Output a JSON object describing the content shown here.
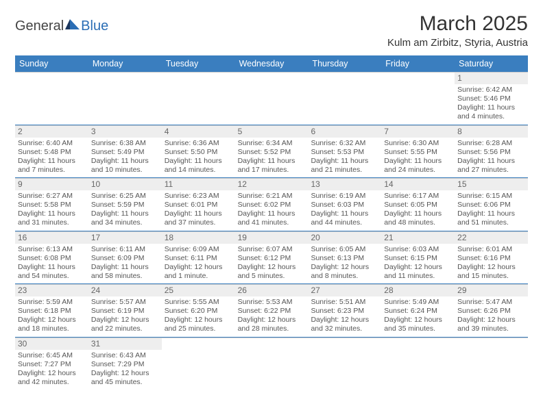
{
  "logo": {
    "text1": "General",
    "text2": "Blue"
  },
  "title": "March 2025",
  "location": "Kulm am Zirbitz, Styria, Austria",
  "colors": {
    "header_bg": "#3a7ebf",
    "header_fg": "#ffffff",
    "daynum_bg": "#eeeeee",
    "border": "#3a7ebf"
  },
  "weekdays": [
    "Sunday",
    "Monday",
    "Tuesday",
    "Wednesday",
    "Thursday",
    "Friday",
    "Saturday"
  ],
  "weeks": [
    [
      null,
      null,
      null,
      null,
      null,
      null,
      {
        "n": "1",
        "sr": "6:42 AM",
        "ss": "5:46 PM",
        "dl": "11 hours and 4 minutes."
      }
    ],
    [
      {
        "n": "2",
        "sr": "6:40 AM",
        "ss": "5:48 PM",
        "dl": "11 hours and 7 minutes."
      },
      {
        "n": "3",
        "sr": "6:38 AM",
        "ss": "5:49 PM",
        "dl": "11 hours and 10 minutes."
      },
      {
        "n": "4",
        "sr": "6:36 AM",
        "ss": "5:50 PM",
        "dl": "11 hours and 14 minutes."
      },
      {
        "n": "5",
        "sr": "6:34 AM",
        "ss": "5:52 PM",
        "dl": "11 hours and 17 minutes."
      },
      {
        "n": "6",
        "sr": "6:32 AM",
        "ss": "5:53 PM",
        "dl": "11 hours and 21 minutes."
      },
      {
        "n": "7",
        "sr": "6:30 AM",
        "ss": "5:55 PM",
        "dl": "11 hours and 24 minutes."
      },
      {
        "n": "8",
        "sr": "6:28 AM",
        "ss": "5:56 PM",
        "dl": "11 hours and 27 minutes."
      }
    ],
    [
      {
        "n": "9",
        "sr": "6:27 AM",
        "ss": "5:58 PM",
        "dl": "11 hours and 31 minutes."
      },
      {
        "n": "10",
        "sr": "6:25 AM",
        "ss": "5:59 PM",
        "dl": "11 hours and 34 minutes."
      },
      {
        "n": "11",
        "sr": "6:23 AM",
        "ss": "6:01 PM",
        "dl": "11 hours and 37 minutes."
      },
      {
        "n": "12",
        "sr": "6:21 AM",
        "ss": "6:02 PM",
        "dl": "11 hours and 41 minutes."
      },
      {
        "n": "13",
        "sr": "6:19 AM",
        "ss": "6:03 PM",
        "dl": "11 hours and 44 minutes."
      },
      {
        "n": "14",
        "sr": "6:17 AM",
        "ss": "6:05 PM",
        "dl": "11 hours and 48 minutes."
      },
      {
        "n": "15",
        "sr": "6:15 AM",
        "ss": "6:06 PM",
        "dl": "11 hours and 51 minutes."
      }
    ],
    [
      {
        "n": "16",
        "sr": "6:13 AM",
        "ss": "6:08 PM",
        "dl": "11 hours and 54 minutes."
      },
      {
        "n": "17",
        "sr": "6:11 AM",
        "ss": "6:09 PM",
        "dl": "11 hours and 58 minutes."
      },
      {
        "n": "18",
        "sr": "6:09 AM",
        "ss": "6:11 PM",
        "dl": "12 hours and 1 minute."
      },
      {
        "n": "19",
        "sr": "6:07 AM",
        "ss": "6:12 PM",
        "dl": "12 hours and 5 minutes."
      },
      {
        "n": "20",
        "sr": "6:05 AM",
        "ss": "6:13 PM",
        "dl": "12 hours and 8 minutes."
      },
      {
        "n": "21",
        "sr": "6:03 AM",
        "ss": "6:15 PM",
        "dl": "12 hours and 11 minutes."
      },
      {
        "n": "22",
        "sr": "6:01 AM",
        "ss": "6:16 PM",
        "dl": "12 hours and 15 minutes."
      }
    ],
    [
      {
        "n": "23",
        "sr": "5:59 AM",
        "ss": "6:18 PM",
        "dl": "12 hours and 18 minutes."
      },
      {
        "n": "24",
        "sr": "5:57 AM",
        "ss": "6:19 PM",
        "dl": "12 hours and 22 minutes."
      },
      {
        "n": "25",
        "sr": "5:55 AM",
        "ss": "6:20 PM",
        "dl": "12 hours and 25 minutes."
      },
      {
        "n": "26",
        "sr": "5:53 AM",
        "ss": "6:22 PM",
        "dl": "12 hours and 28 minutes."
      },
      {
        "n": "27",
        "sr": "5:51 AM",
        "ss": "6:23 PM",
        "dl": "12 hours and 32 minutes."
      },
      {
        "n": "28",
        "sr": "5:49 AM",
        "ss": "6:24 PM",
        "dl": "12 hours and 35 minutes."
      },
      {
        "n": "29",
        "sr": "5:47 AM",
        "ss": "6:26 PM",
        "dl": "12 hours and 39 minutes."
      }
    ],
    [
      {
        "n": "30",
        "sr": "6:45 AM",
        "ss": "7:27 PM",
        "dl": "12 hours and 42 minutes."
      },
      {
        "n": "31",
        "sr": "6:43 AM",
        "ss": "7:29 PM",
        "dl": "12 hours and 45 minutes."
      },
      null,
      null,
      null,
      null,
      null
    ]
  ],
  "labels": {
    "sunrise": "Sunrise:",
    "sunset": "Sunset:",
    "daylight": "Daylight:"
  }
}
